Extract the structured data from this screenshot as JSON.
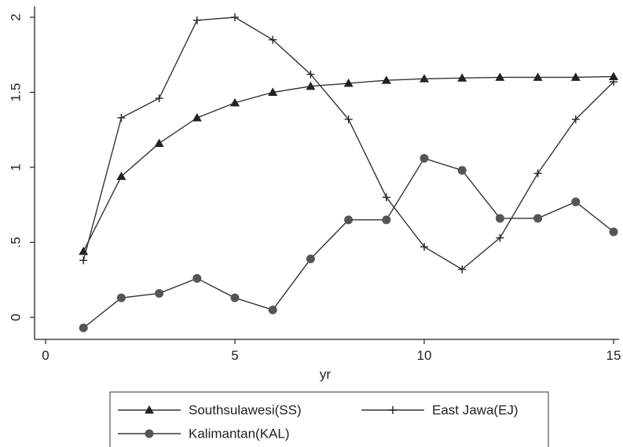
{
  "chart_data": {
    "type": "line",
    "xlabel": "yr",
    "ylabel": "",
    "xlim": [
      -0.3,
      15.2
    ],
    "ylim": [
      -0.15,
      2.05
    ],
    "x_ticks": [
      0,
      5,
      10,
      15
    ],
    "x_tick_labels": [
      "0",
      "5",
      "10",
      "15"
    ],
    "y_ticks": [
      0,
      0.5,
      1,
      1.5,
      2
    ],
    "y_tick_labels": [
      "0",
      ".5",
      "1",
      "1.5",
      "2"
    ],
    "grid": false,
    "legend_position": "bottom",
    "x": [
      1,
      2,
      3,
      4,
      5,
      6,
      7,
      8,
      9,
      10,
      11,
      12,
      13,
      14,
      15
    ],
    "series": [
      {
        "name": "Southsulawesi(SS)",
        "marker": "triangle",
        "values": [
          0.44,
          0.94,
          1.16,
          1.33,
          1.43,
          1.5,
          1.54,
          1.56,
          1.58,
          1.59,
          1.595,
          1.6,
          1.6,
          1.6,
          1.605
        ]
      },
      {
        "name": "East Jawa(EJ)",
        "marker": "plus",
        "values": [
          0.38,
          1.33,
          1.46,
          1.98,
          2.0,
          1.85,
          1.62,
          1.32,
          0.8,
          0.47,
          0.32,
          0.53,
          0.96,
          1.32,
          1.57
        ]
      },
      {
        "name": "Kalimantan(KAL)",
        "marker": "circle",
        "values": [
          -0.07,
          0.13,
          0.16,
          0.26,
          0.13,
          0.05,
          0.39,
          0.65,
          0.65,
          1.06,
          0.98,
          0.66,
          0.66,
          0.77,
          0.57
        ]
      }
    ]
  }
}
